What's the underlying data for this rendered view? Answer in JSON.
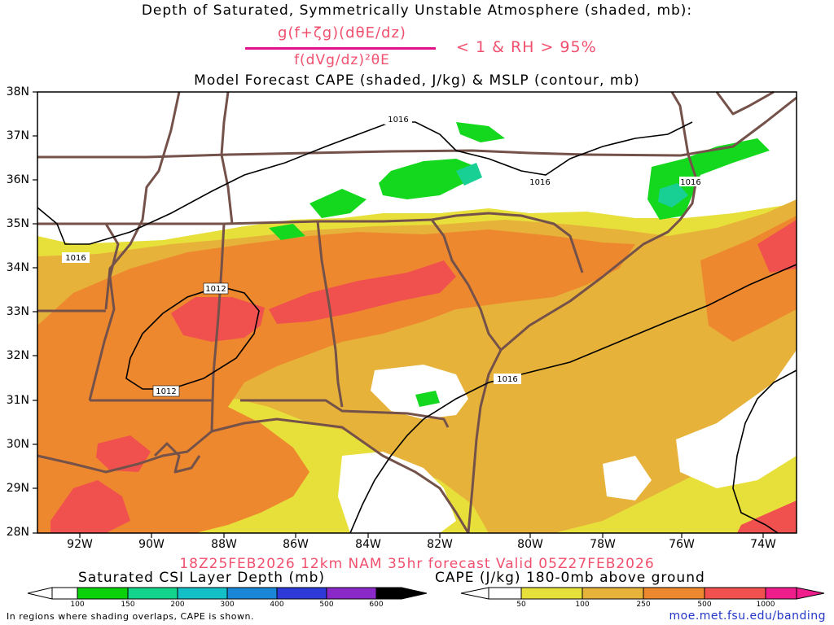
{
  "header": {
    "title_line1": "Depth of Saturated, Symmetrically Unstable Atmosphere (shaded, mb):",
    "fraction_numerator": "g(f+ζg)(dθE/dz)",
    "fraction_denominator": "f(dVg/dz)²θE",
    "condition": "< 1 & RH > 95%",
    "title_line3": "Model Forecast CAPE (shaded, J/kg) & MSLP (contour, mb)"
  },
  "map": {
    "lat_labels": [
      "38N",
      "37N",
      "36N",
      "35N",
      "34N",
      "33N",
      "32N",
      "31N",
      "30N",
      "29N",
      "28N"
    ],
    "lon_labels": [
      "92W",
      "90W",
      "88W",
      "86W",
      "84W",
      "82W",
      "80W",
      "78W",
      "76W",
      "74W"
    ],
    "isobar_labels": {
      "l1016_north": "1016",
      "l1016_nc": "1016",
      "l1016_west": "1016",
      "l1012_top": "1012",
      "l1012_bottom": "1012",
      "l1016_ga": "1016",
      "l1016_va": "1016"
    },
    "colors": {
      "state_border": "#74524a",
      "isobar": "#000000",
      "cape_50": "#e8e03a",
      "cape_100": "#e6b23a",
      "cape_250": "#ee882e",
      "cape_500": "#f0504e",
      "csi_100": "#14d81e",
      "csi_150": "#18cf94"
    }
  },
  "forecast_line": "18Z25FEB2026 12km NAM 35hr forecast Valid 05Z27FEB2026",
  "colorbar_csi": {
    "title": "Saturated CSI Layer Depth (mb)",
    "ticks": [
      "100",
      "150",
      "200",
      "300",
      "400",
      "500",
      "600"
    ],
    "colors": [
      "#ffffff",
      "#0ad10a",
      "#12d48a",
      "#14c0c8",
      "#1a86d8",
      "#2d3ad8",
      "#4a2ad0",
      "#8a28c8",
      "#000000"
    ]
  },
  "colorbar_cape": {
    "title": "CAPE (J/kg) 180-0mb above ground",
    "ticks": [
      "50",
      "100",
      "250",
      "500",
      "1000"
    ],
    "colors": [
      "#ffffff",
      "#e8e03a",
      "#e6b23a",
      "#ee882e",
      "#f0504e",
      "#f01e8c"
    ]
  },
  "footer": {
    "note": "In regions where shading overlaps, CAPE is shown.",
    "url": "moe.met.fsu.edu/banding"
  }
}
